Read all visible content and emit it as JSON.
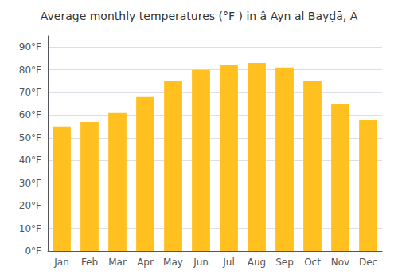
{
  "chart_data": {
    "type": "bar",
    "title": "Average monthly temperatures (°F ) in â Ayn al Bayḍā, Ä",
    "categories": [
      "Jan",
      "Feb",
      "Mar",
      "Apr",
      "May",
      "Jun",
      "Jul",
      "Aug",
      "Sep",
      "Oct",
      "Nov",
      "Dec"
    ],
    "values": [
      55,
      57,
      61,
      68,
      75,
      80,
      82,
      83,
      81,
      75,
      65,
      58
    ],
    "color": "#FFC020",
    "ylim": [
      0,
      95
    ],
    "yticks": [
      {
        "value": 0,
        "label": "0°F"
      },
      {
        "value": 10,
        "label": "10°F"
      },
      {
        "value": 20,
        "label": "20°F"
      },
      {
        "value": 30,
        "label": "30°F"
      },
      {
        "value": 40,
        "label": "40°F"
      },
      {
        "value": 50,
        "label": "50°F"
      },
      {
        "value": 60,
        "label": "60°F"
      },
      {
        "value": 70,
        "label": "70°F"
      },
      {
        "value": 80,
        "label": "80°F"
      },
      {
        "value": 90,
        "label": "90°F"
      }
    ],
    "grid": true
  }
}
